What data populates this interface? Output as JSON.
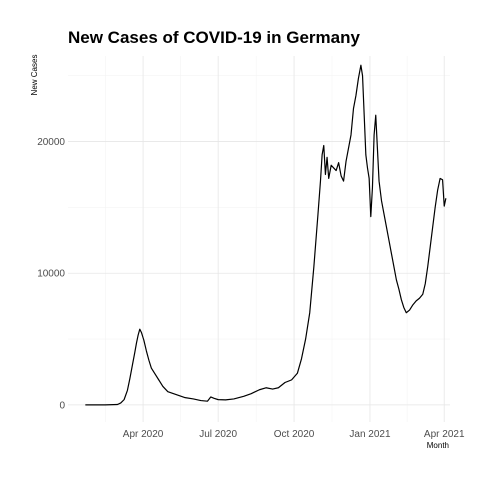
{
  "chart_data": {
    "type": "line",
    "title": "New Cases of COVID-19 in Germany",
    "xlabel": "Month",
    "ylabel": "New Cases",
    "x_ticks": [
      {
        "date": "2020-04-01",
        "label": "Apr 2020"
      },
      {
        "date": "2020-07-01",
        "label": "Jul 2020"
      },
      {
        "date": "2020-10-01",
        "label": "Oct 2020"
      },
      {
        "date": "2021-01-01",
        "label": "Jan 2021"
      },
      {
        "date": "2021-04-01",
        "label": "Apr 2021"
      }
    ],
    "y_ticks": [
      0,
      10000,
      20000
    ],
    "xlim": [
      "2020-01-01",
      "2021-04-08"
    ],
    "ylim": [
      -1300,
      26500
    ],
    "grid": true,
    "legend": "none",
    "line_color": "#000000",
    "series": [
      {
        "points": [
          [
            "2020-01-22",
            0
          ],
          [
            "2020-02-15",
            0
          ],
          [
            "2020-03-01",
            30
          ],
          [
            "2020-03-05",
            150
          ],
          [
            "2020-03-09",
            400
          ],
          [
            "2020-03-13",
            1100
          ],
          [
            "2020-03-16",
            2000
          ],
          [
            "2020-03-19",
            3000
          ],
          [
            "2020-03-22",
            4000
          ],
          [
            "2020-03-24",
            4700
          ],
          [
            "2020-03-26",
            5300
          ],
          [
            "2020-03-28",
            5750
          ],
          [
            "2020-03-30",
            5500
          ],
          [
            "2020-04-02",
            4900
          ],
          [
            "2020-04-05",
            4100
          ],
          [
            "2020-04-08",
            3400
          ],
          [
            "2020-04-11",
            2800
          ],
          [
            "2020-04-15",
            2400
          ],
          [
            "2020-04-20",
            1900
          ],
          [
            "2020-04-25",
            1400
          ],
          [
            "2020-05-01",
            1000
          ],
          [
            "2020-05-08",
            850
          ],
          [
            "2020-05-15",
            700
          ],
          [
            "2020-05-22",
            550
          ],
          [
            "2020-06-01",
            450
          ],
          [
            "2020-06-10",
            330
          ],
          [
            "2020-06-18",
            280
          ],
          [
            "2020-06-22",
            600
          ],
          [
            "2020-06-26",
            500
          ],
          [
            "2020-07-01",
            400
          ],
          [
            "2020-07-10",
            380
          ],
          [
            "2020-07-20",
            450
          ],
          [
            "2020-08-01",
            650
          ],
          [
            "2020-08-10",
            850
          ],
          [
            "2020-08-20",
            1150
          ],
          [
            "2020-08-28",
            1300
          ],
          [
            "2020-09-05",
            1200
          ],
          [
            "2020-09-12",
            1300
          ],
          [
            "2020-09-20",
            1700
          ],
          [
            "2020-09-28",
            1900
          ],
          [
            "2020-10-05",
            2400
          ],
          [
            "2020-10-10",
            3500
          ],
          [
            "2020-10-15",
            5000
          ],
          [
            "2020-10-20",
            7000
          ],
          [
            "2020-10-25",
            10500
          ],
          [
            "2020-10-30",
            14500
          ],
          [
            "2020-11-02",
            17000
          ],
          [
            "2020-11-04",
            19000
          ],
          [
            "2020-11-06",
            19700
          ],
          [
            "2020-11-08",
            17500
          ],
          [
            "2020-11-10",
            18800
          ],
          [
            "2020-11-12",
            17200
          ],
          [
            "2020-11-15",
            18200
          ],
          [
            "2020-11-18",
            18000
          ],
          [
            "2020-11-21",
            17800
          ],
          [
            "2020-11-24",
            18400
          ],
          [
            "2020-11-27",
            17400
          ],
          [
            "2020-11-30",
            17000
          ],
          [
            "2020-12-03",
            18500
          ],
          [
            "2020-12-06",
            19500
          ],
          [
            "2020-12-09",
            20500
          ],
          [
            "2020-12-12",
            22500
          ],
          [
            "2020-12-15",
            23500
          ],
          [
            "2020-12-18",
            24800
          ],
          [
            "2020-12-21",
            25800
          ],
          [
            "2020-12-23",
            25000
          ],
          [
            "2020-12-25",
            22000
          ],
          [
            "2020-12-27",
            19000
          ],
          [
            "2020-12-29",
            18000
          ],
          [
            "2020-12-31",
            17200
          ],
          [
            "2021-01-02",
            14300
          ],
          [
            "2021-01-04",
            16500
          ],
          [
            "2021-01-06",
            20500
          ],
          [
            "2021-01-08",
            22000
          ],
          [
            "2021-01-10",
            19500
          ],
          [
            "2021-01-12",
            17000
          ],
          [
            "2021-01-15",
            15500
          ],
          [
            "2021-01-18",
            14500
          ],
          [
            "2021-01-21",
            13500
          ],
          [
            "2021-01-24",
            12500
          ],
          [
            "2021-01-27",
            11500
          ],
          [
            "2021-01-30",
            10500
          ],
          [
            "2021-02-02",
            9500
          ],
          [
            "2021-02-05",
            8800
          ],
          [
            "2021-02-08",
            8000
          ],
          [
            "2021-02-11",
            7400
          ],
          [
            "2021-02-14",
            7000
          ],
          [
            "2021-02-18",
            7200
          ],
          [
            "2021-02-22",
            7600
          ],
          [
            "2021-02-26",
            7900
          ],
          [
            "2021-03-02",
            8100
          ],
          [
            "2021-03-06",
            8400
          ],
          [
            "2021-03-09",
            9200
          ],
          [
            "2021-03-12",
            10500
          ],
          [
            "2021-03-15",
            12000
          ],
          [
            "2021-03-18",
            13500
          ],
          [
            "2021-03-21",
            15000
          ],
          [
            "2021-03-24",
            16300
          ],
          [
            "2021-03-27",
            17200
          ],
          [
            "2021-03-30",
            17100
          ],
          [
            "2021-04-01",
            15100
          ],
          [
            "2021-04-03",
            15700
          ]
        ]
      }
    ]
  }
}
